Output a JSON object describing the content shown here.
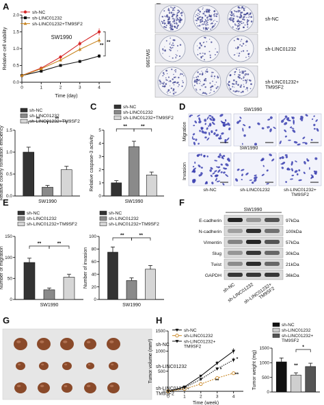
{
  "panel_letters": [
    "A",
    "B",
    "C",
    "D",
    "E",
    "F",
    "G",
    "H"
  ],
  "colors": {
    "shNC_line": "#d62728",
    "shLINC_line": "#111111",
    "shTM9_line": "#c8841f",
    "bar_dark": "#333333",
    "bar_mid": "#8a8a8a",
    "bar_light": "#d6d6d6",
    "colony": "#3a3f8f",
    "cell_stain": "#3b3fb0",
    "tumor": "#8a4a2a"
  },
  "panel_b": {
    "side_label": "SW1990",
    "rows": [
      "sh-NC",
      "sh-LINC01232",
      "sh-LINC01232+\nTM9SF2"
    ]
  },
  "panel_d": {
    "title": "SW1990",
    "title2": "SW1990",
    "row_labels": [
      "Migration",
      "Invasion"
    ],
    "col_labels_top": [
      "sh-NC",
      "sh-LINC01232",
      "sh-LINC01232+\nTM9SF2"
    ],
    "col_labels_bottom": [
      "sh-NC",
      "sh-LINC01232",
      "sh-LINC01232+\nTM9SF2"
    ]
  },
  "panel_f": {
    "title": "SW1990",
    "proteins": [
      "E-cadherin",
      "N-cadherin",
      "Vimentin",
      "Slug",
      "Twist",
      "GAPDH"
    ],
    "kda": [
      "97kDa",
      "100kDa",
      "57kDa",
      "30kDa",
      "21kDa",
      "36kDa"
    ],
    "lanes": [
      "sh-NC",
      "sh-LINC01232",
      "sh-LINC01232+\nTM9SF2"
    ]
  },
  "panel_g": {
    "rows": [
      "sh-NC",
      "sh-LINC01232",
      "sh-LINC01232+\nTM9SF2"
    ]
  },
  "chart_data": [
    {
      "panel": "A",
      "type": "line",
      "title": "SW1990",
      "xlabel": "Time (day)",
      "ylabel": "Relative cell viability",
      "x": [
        0,
        1,
        2,
        3,
        4
      ],
      "xlim": [
        0,
        4.6
      ],
      "ylim": [
        0,
        2.0
      ],
      "yticks": [
        0.0,
        0.5,
        1.0,
        1.5,
        2.0
      ],
      "series": [
        {
          "name": "sh-NC",
          "values": [
            0.2,
            0.42,
            0.75,
            1.15,
            1.5
          ]
        },
        {
          "name": "sh-LINC01232",
          "values": [
            0.2,
            0.33,
            0.5,
            0.62,
            0.78
          ]
        },
        {
          "name": "sh-LINC01232+TM9SF2",
          "values": [
            0.2,
            0.4,
            0.66,
            0.98,
            1.25
          ]
        }
      ],
      "annotations": [
        "**",
        "**"
      ],
      "legend": "top-left"
    },
    {
      "panel": "colony",
      "type": "bar",
      "xlabel": "SW1990",
      "ylabel": "Relative colony formation efficiency",
      "ylim": [
        0,
        1.5
      ],
      "yticks": [
        0.0,
        0.5,
        1.0,
        1.5
      ],
      "series": [
        {
          "name": "sh-NC",
          "values": [
            1.0
          ]
        },
        {
          "name": "sh-LINC01232",
          "values": [
            0.2
          ]
        },
        {
          "name": "sh-LINC01232+TM9SF2",
          "values": [
            0.6
          ]
        }
      ],
      "annotations": [
        "**",
        "**"
      ],
      "legend": "top"
    },
    {
      "panel": "C",
      "type": "bar",
      "xlabel": "SW1990",
      "ylabel": "Relative caspase-3 activity",
      "ylim": [
        0,
        5
      ],
      "yticks": [
        0,
        1,
        2,
        3,
        4,
        5
      ],
      "series": [
        {
          "name": "sh-NC",
          "values": [
            1.0
          ]
        },
        {
          "name": "sh-LINC01232",
          "values": [
            3.75
          ]
        },
        {
          "name": "sh-LINC01232+TM9SF2",
          "values": [
            1.6
          ]
        }
      ],
      "annotations": [
        "**",
        "**"
      ],
      "legend": "top"
    },
    {
      "panel": "E-migration",
      "type": "bar",
      "xlabel": "SW1990",
      "ylabel": "Number of migration",
      "ylim": [
        0,
        150
      ],
      "yticks": [
        0,
        50,
        100,
        150
      ],
      "series": [
        {
          "name": "sh-NC",
          "values": [
            88
          ]
        },
        {
          "name": "sh-LINC01232",
          "values": [
            23
          ]
        },
        {
          "name": "sh-LINC01232+TM9SF2",
          "values": [
            53
          ]
        }
      ],
      "annotations": [
        "**",
        "**"
      ],
      "legend": "top"
    },
    {
      "panel": "E-invasion",
      "type": "bar",
      "xlabel": "SW1990",
      "ylabel": "Number of invasion",
      "ylim": [
        0,
        100
      ],
      "yticks": [
        0,
        20,
        40,
        60,
        80,
        100
      ],
      "series": [
        {
          "name": "sh-NC",
          "values": [
            75
          ]
        },
        {
          "name": "sh-LINC01232",
          "values": [
            30
          ]
        },
        {
          "name": "sh-LINC01232+TM9SF2",
          "values": [
            48
          ]
        }
      ],
      "annotations": [
        "**",
        "**"
      ],
      "legend": "top"
    },
    {
      "panel": "H-volume",
      "type": "line",
      "xlabel": "Time (week)",
      "ylabel": "Tumor volume (mm³)",
      "x": [
        0,
        1,
        2,
        3,
        4
      ],
      "xlim": [
        0,
        4.6
      ],
      "ylim": [
        0,
        1500
      ],
      "yticks": [
        0,
        500,
        1000,
        1500
      ],
      "series": [
        {
          "name": "sh-NC",
          "values": [
            0,
            110,
            380,
            700,
            1000
          ]
        },
        {
          "name": "sh-LINC01232",
          "values": [
            0,
            60,
            180,
            330,
            450
          ]
        },
        {
          "name": "sh-LINC01232+\nTM9SF2",
          "values": [
            0,
            90,
            300,
            560,
            780
          ]
        }
      ],
      "annotations": [
        "*",
        "**",
        "*",
        "**"
      ],
      "legend": "top-left"
    },
    {
      "panel": "H-weight",
      "type": "bar",
      "ylabel": "Tumor weight (mg)",
      "ylim": [
        0,
        1500
      ],
      "yticks": [
        0,
        500,
        1000,
        1500
      ],
      "series": [
        {
          "name": "sh-NC",
          "values": [
            1030
          ]
        },
        {
          "name": "sh-LINC01232",
          "values": [
            580
          ]
        },
        {
          "name": "sh-LINC01232+\nTM9SF2",
          "values": [
            870
          ]
        }
      ],
      "annotations": [
        "**",
        "*"
      ],
      "legend": "top"
    }
  ]
}
